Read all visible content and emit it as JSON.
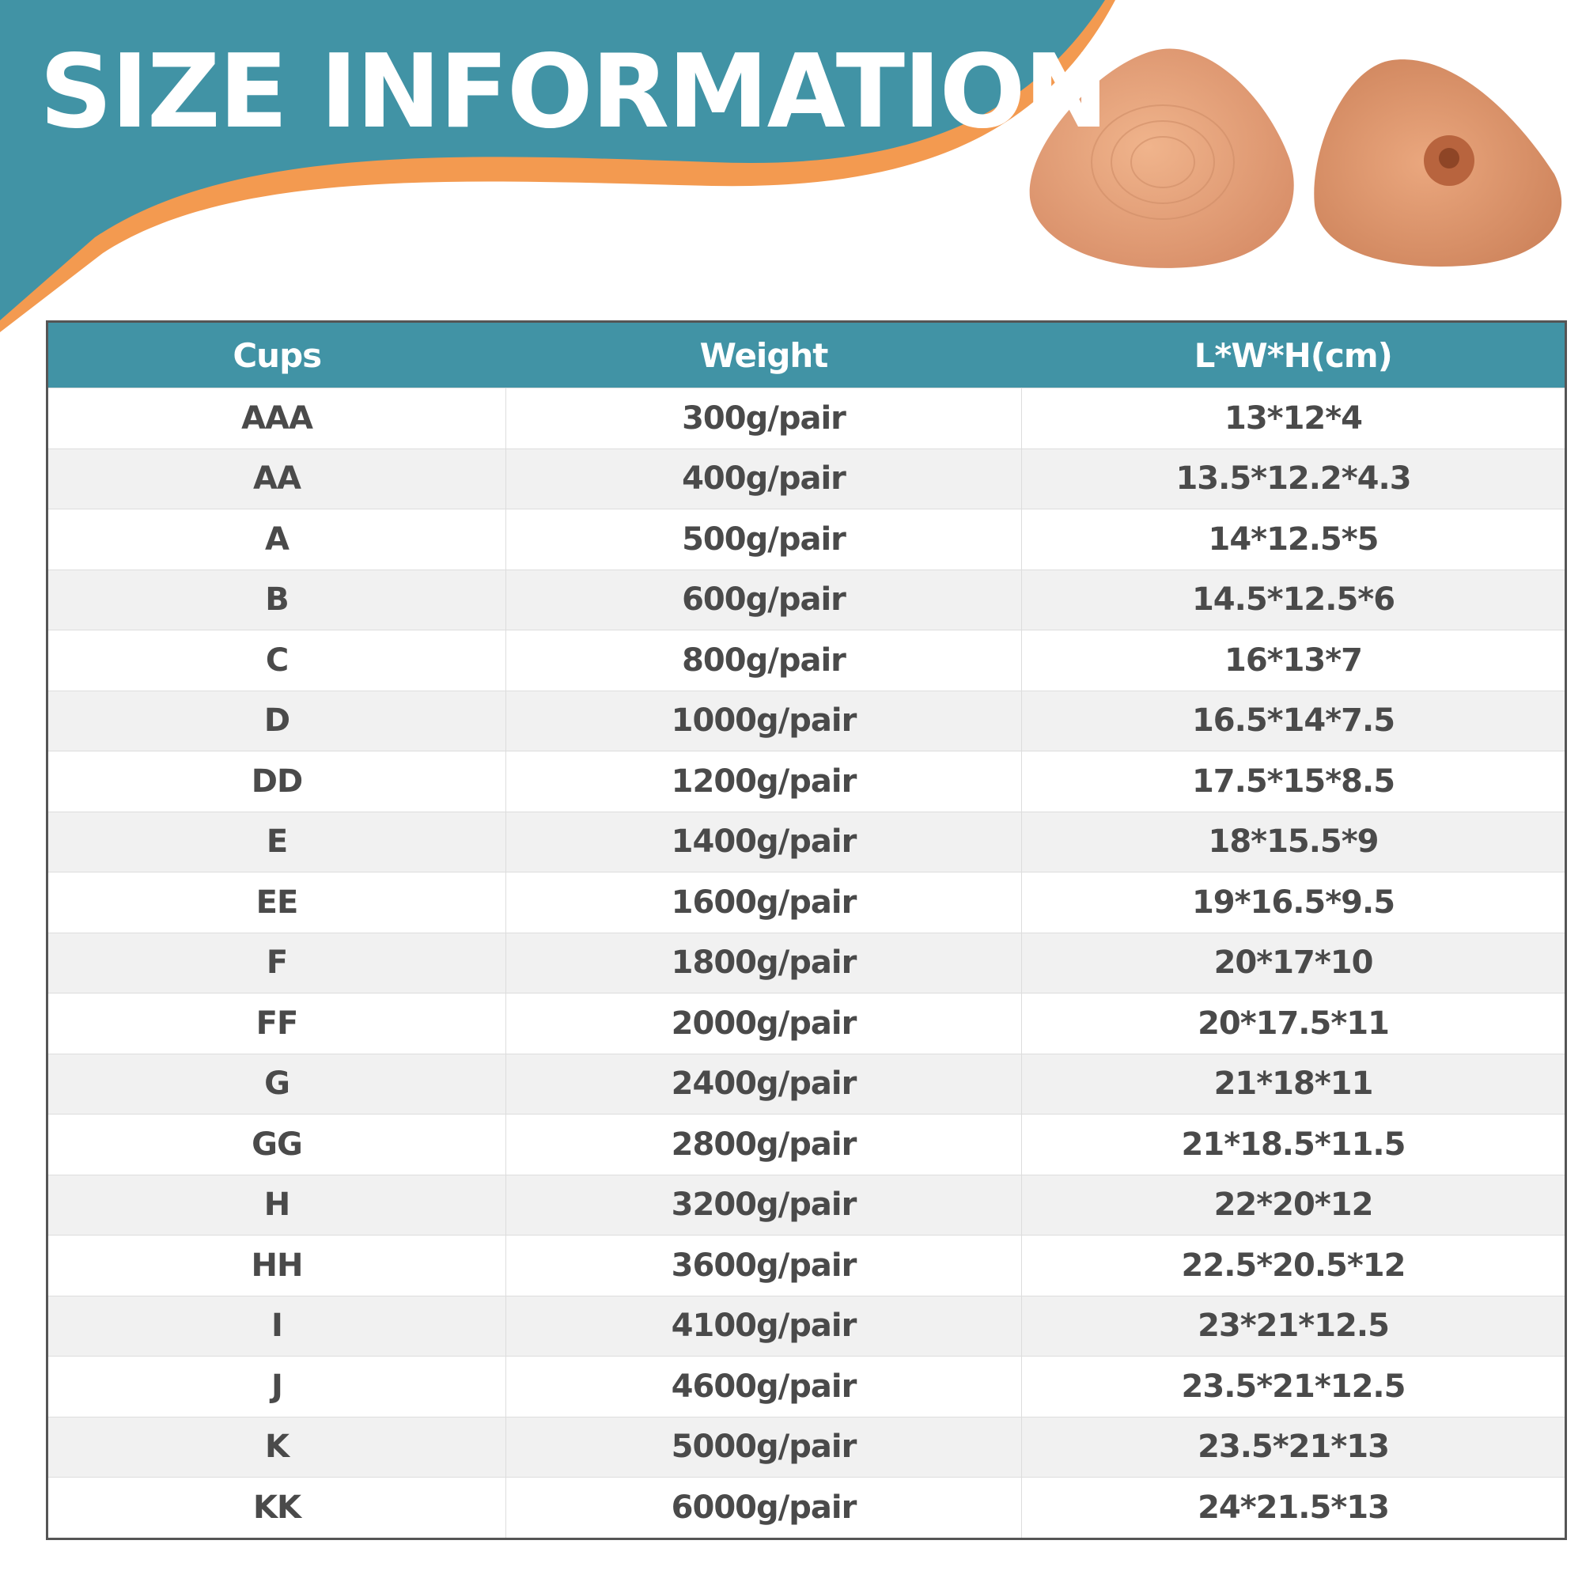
{
  "header": {
    "title": "SIZE INFORMATION"
  },
  "table": {
    "columns": [
      "Cups",
      "Weight",
      "L*W*H(cm)"
    ],
    "rows": [
      [
        "AAA",
        "300g/pair",
        "13*12*4"
      ],
      [
        "AA",
        "400g/pair",
        "13.5*12.2*4.3"
      ],
      [
        "A",
        "500g/pair",
        "14*12.5*5"
      ],
      [
        "B",
        "600g/pair",
        "14.5*12.5*6"
      ],
      [
        "C",
        "800g/pair",
        "16*13*7"
      ],
      [
        "D",
        "1000g/pair",
        "16.5*14*7.5"
      ],
      [
        "DD",
        "1200g/pair",
        "17.5*15*8.5"
      ],
      [
        "E",
        "1400g/pair",
        "18*15.5*9"
      ],
      [
        "EE",
        "1600g/pair",
        "19*16.5*9.5"
      ],
      [
        "F",
        "1800g/pair",
        "20*17*10"
      ],
      [
        "FF",
        "2000g/pair",
        "20*17.5*11"
      ],
      [
        "G",
        "2400g/pair",
        "21*18*11"
      ],
      [
        "GG",
        "2800g/pair",
        "21*18.5*11.5"
      ],
      [
        "H",
        "3200g/pair",
        "22*20*12"
      ],
      [
        "HH",
        "3600g/pair",
        "22.5*20.5*12"
      ],
      [
        "I",
        "4100g/pair",
        "23*21*12.5"
      ],
      [
        "J",
        "4600g/pair",
        "23.5*21*12.5"
      ],
      [
        "K",
        "5000g/pair",
        "23.5*21*13"
      ],
      [
        "KK",
        "6000g/pair",
        "24*21.5*13"
      ]
    ]
  }
}
